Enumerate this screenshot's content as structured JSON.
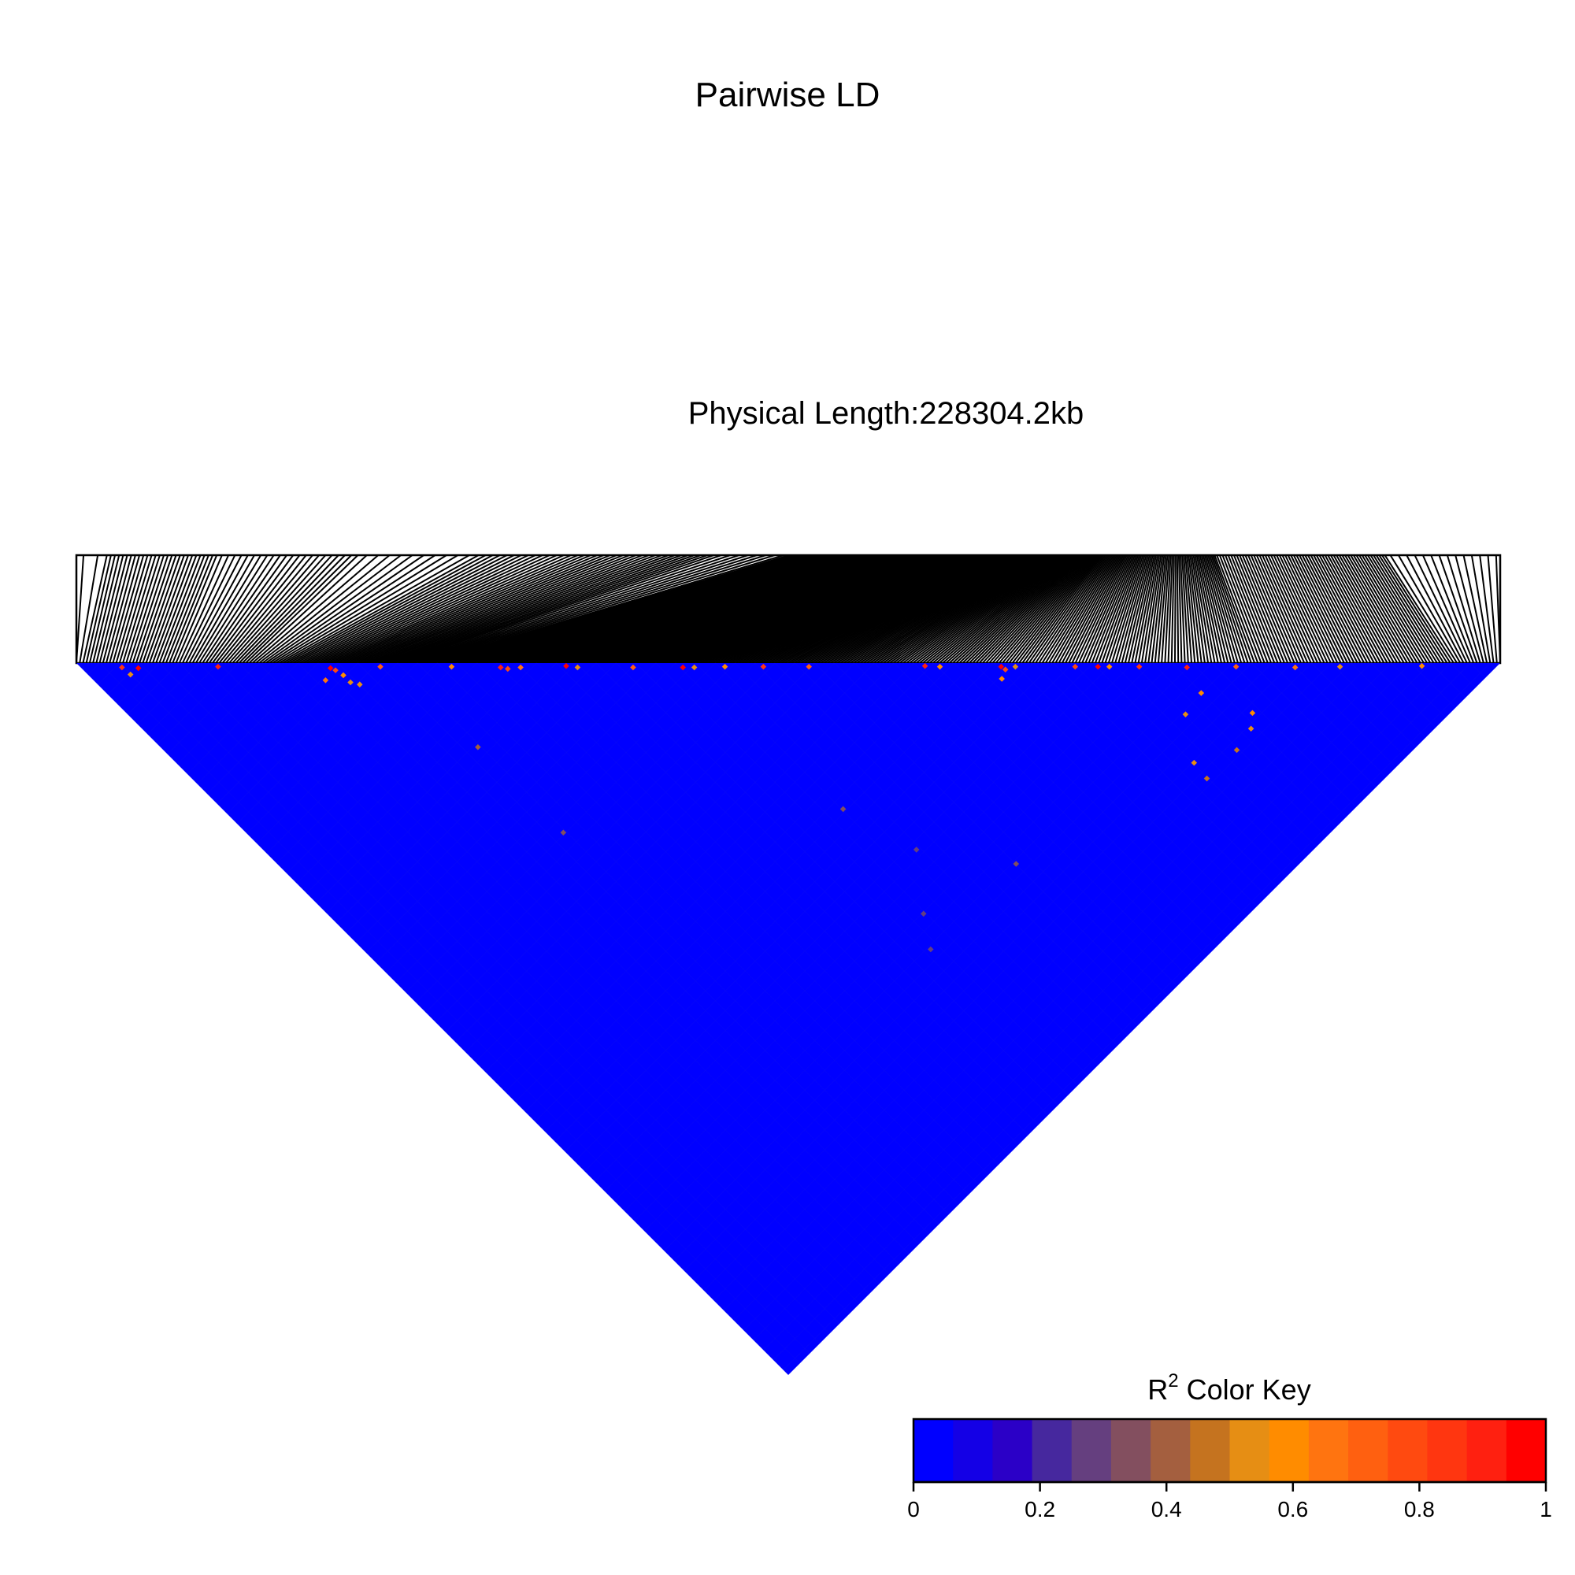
{
  "chart_data": {
    "type": "heatmap",
    "title": "Pairwise LD",
    "subtitle": "Physical Length:228304.2kb",
    "physical_length_kb": 228304.2,
    "color_key": {
      "title_base": "R",
      "title_superscript": "2",
      "title_suffix": " Color Key",
      "range": [
        0,
        1
      ],
      "ticks": [
        "0",
        "0.2",
        "0.4",
        "0.6",
        "0.8",
        "1"
      ],
      "tick_values": [
        0,
        0.2,
        0.4,
        0.6,
        0.8,
        1
      ],
      "colors": [
        "#0000FF",
        "#1400E6",
        "#2B00C7",
        "#46289E",
        "#653F7F",
        "#834F5F",
        "#A45F3F",
        "#C5731F",
        "#E68E14",
        "#FF8C00",
        "#FF7410",
        "#FF6010",
        "#FF4A10",
        "#FF3610",
        "#FF2010",
        "#FF0000",
        "#FF0000"
      ]
    },
    "background_r2": 0.0,
    "high_ld_pairs": [
      {
        "i": 0.041,
        "j": 0.046,
        "r2": 0.95
      },
      {
        "i": 0.03,
        "j": 0.034,
        "r2": 0.85
      },
      {
        "i": 0.098,
        "j": 0.101,
        "r2": 0.9
      },
      {
        "i": 0.176,
        "j": 0.181,
        "r2": 1.0
      },
      {
        "i": 0.178,
        "j": 0.186,
        "r2": 0.8
      },
      {
        "i": 0.212,
        "j": 0.215,
        "r2": 0.7
      },
      {
        "i": 0.262,
        "j": 0.265,
        "r2": 0.6
      },
      {
        "i": 0.296,
        "j": 0.3,
        "r2": 0.9
      },
      {
        "i": 0.3,
        "j": 0.306,
        "r2": 0.75
      },
      {
        "i": 0.31,
        "j": 0.314,
        "r2": 0.65
      },
      {
        "i": 0.343,
        "j": 0.345,
        "r2": 1.0
      },
      {
        "i": 0.35,
        "j": 0.354,
        "r2": 0.55
      },
      {
        "i": 0.389,
        "j": 0.393,
        "r2": 0.7
      },
      {
        "i": 0.424,
        "j": 0.428,
        "r2": 0.95
      },
      {
        "i": 0.432,
        "j": 0.436,
        "r2": 0.5
      },
      {
        "i": 0.454,
        "j": 0.457,
        "r2": 0.6
      },
      {
        "i": 0.481,
        "j": 0.484,
        "r2": 0.85
      },
      {
        "i": 0.513,
        "j": 0.516,
        "r2": 0.7
      },
      {
        "i": 0.595,
        "j": 0.597,
        "r2": 0.9
      },
      {
        "i": 0.605,
        "j": 0.608,
        "r2": 0.6
      },
      {
        "i": 0.648,
        "j": 0.651,
        "r2": 1.0
      },
      {
        "i": 0.649,
        "j": 0.656,
        "r2": 0.8
      },
      {
        "i": 0.658,
        "j": 0.661,
        "r2": 0.55
      },
      {
        "i": 0.7,
        "j": 0.703,
        "r2": 0.75
      },
      {
        "i": 0.716,
        "j": 0.719,
        "r2": 0.95
      },
      {
        "i": 0.724,
        "j": 0.727,
        "r2": 0.6
      },
      {
        "i": 0.745,
        "j": 0.748,
        "r2": 0.85
      },
      {
        "i": 0.778,
        "j": 0.782,
        "r2": 0.9
      },
      {
        "i": 0.813,
        "j": 0.816,
        "r2": 0.7
      },
      {
        "i": 0.854,
        "j": 0.858,
        "r2": 0.65
      },
      {
        "i": 0.886,
        "j": 0.889,
        "r2": 0.55
      },
      {
        "i": 0.944,
        "j": 0.946,
        "r2": 0.6
      },
      {
        "i": 0.031,
        "j": 0.045,
        "r2": 0.55
      },
      {
        "i": 0.18,
        "j": 0.195,
        "r2": 0.6
      },
      {
        "i": 0.164,
        "j": 0.186,
        "r2": 0.65
      },
      {
        "i": 0.18,
        "j": 0.205,
        "r2": 0.55
      },
      {
        "i": 0.185,
        "j": 0.213,
        "r2": 0.5
      },
      {
        "i": 0.64,
        "j": 0.66,
        "r2": 0.6
      },
      {
        "i": 0.77,
        "j": 0.81,
        "r2": 0.6
      },
      {
        "i": 0.744,
        "j": 0.814,
        "r2": 0.55
      },
      {
        "i": 0.78,
        "j": 0.87,
        "r2": 0.5
      },
      {
        "i": 0.792,
        "j": 0.86,
        "r2": 0.6
      },
      {
        "i": 0.714,
        "j": 0.874,
        "r2": 0.45
      },
      {
        "i": 0.716,
        "j": 0.854,
        "r2": 0.5
      },
      {
        "i": 0.755,
        "j": 0.875,
        "r2": 0.45
      },
      {
        "i": 0.224,
        "j": 0.34,
        "r2": 0.4
      },
      {
        "i": 0.224,
        "j": 0.46,
        "r2": 0.35
      },
      {
        "i": 0.437,
        "j": 0.64,
        "r2": 0.35
      },
      {
        "i": 0.42,
        "j": 0.77,
        "r2": 0.3
      },
      {
        "i": 0.4,
        "j": 0.8,
        "r2": 0.3
      },
      {
        "i": 0.46,
        "j": 0.72,
        "r2": 0.3
      },
      {
        "i": 0.52,
        "j": 0.8,
        "r2": 0.35
      }
    ],
    "snp_positions_note": "SNP genomic positions (normalized 0-1 along chromosome) mapped to evenly spaced matrix columns",
    "snp_density_profile": {
      "segments": [
        {
          "from": 0.0,
          "to": 0.02,
          "count": 2
        },
        {
          "from": 0.02,
          "to": 0.1,
          "count": 28
        },
        {
          "from": 0.1,
          "to": 0.2,
          "count": 22
        },
        {
          "from": 0.2,
          "to": 0.28,
          "count": 10
        },
        {
          "from": 0.28,
          "to": 0.35,
          "count": 14
        },
        {
          "from": 0.35,
          "to": 0.45,
          "count": 22
        },
        {
          "from": 0.45,
          "to": 0.5,
          "count": 8
        },
        {
          "from": 0.5,
          "to": 0.6,
          "count": 60
        },
        {
          "from": 0.6,
          "to": 0.72,
          "count": 120
        },
        {
          "from": 0.72,
          "to": 0.8,
          "count": 70
        },
        {
          "from": 0.8,
          "to": 0.92,
          "count": 60
        },
        {
          "from": 0.92,
          "to": 1.0,
          "count": 14
        }
      ]
    }
  }
}
